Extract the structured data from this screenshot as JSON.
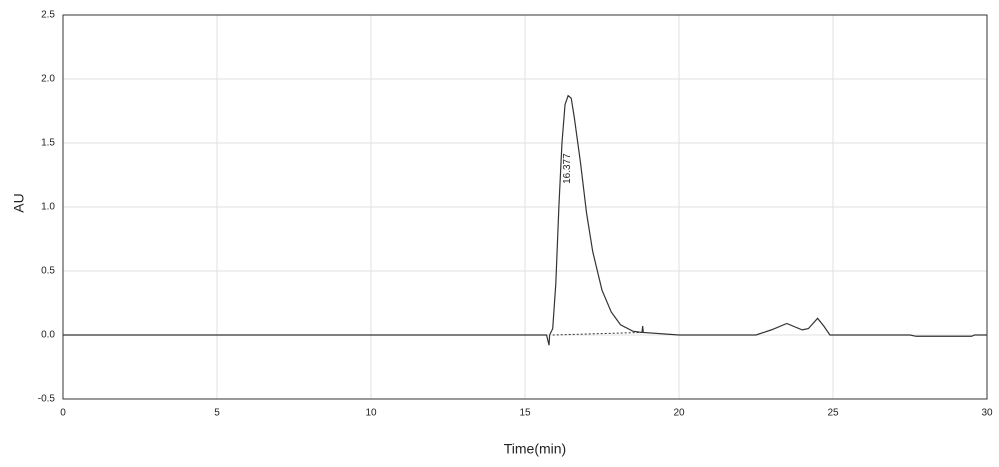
{
  "chart_data": {
    "type": "line",
    "x_label": "Time(min)",
    "y_label": "AU",
    "color": "#333333",
    "x": [
      0,
      15.7,
      15.78,
      15.8,
      15.9,
      16.0,
      16.1,
      16.2,
      16.3,
      16.4,
      16.5,
      16.6,
      16.8,
      17.0,
      17.2,
      17.5,
      17.8,
      18.1,
      18.5,
      18.8,
      18.82,
      18.84,
      20,
      22.5,
      23.0,
      23.5,
      24.0,
      24.2,
      24.5,
      24.7,
      24.9,
      27.5,
      27.7,
      29.5,
      29.6,
      30
    ],
    "values": [
      0,
      0,
      -0.08,
      0,
      0.05,
      0.4,
      1.0,
      1.5,
      1.8,
      1.87,
      1.85,
      1.7,
      1.35,
      0.95,
      0.65,
      0.35,
      0.18,
      0.08,
      0.03,
      0.02,
      0.07,
      0.02,
      0,
      0,
      0.04,
      0.09,
      0.04,
      0.05,
      0.13,
      0.07,
      0,
      0,
      -0.01,
      -0.01,
      0,
      0
    ],
    "baseline": {
      "x": [
        15.9,
        18.8
      ],
      "values": [
        0,
        0.02
      ]
    },
    "annotations": [
      {
        "text": "16.377",
        "x": 16.377,
        "y": 1.3
      }
    ],
    "xlim": [
      0,
      30
    ],
    "xticks": [
      0,
      5,
      10,
      15,
      20,
      25,
      30
    ],
    "ylim": [
      -0.5,
      2.5
    ],
    "yticks": [
      -0.5,
      {
        "value": 0,
        "label": "0.0"
      },
      0.5,
      {
        "value": 1,
        "label": "1.0"
      },
      1.5,
      {
        "value": 2,
        "label": "2.0"
      },
      2.5
    ],
    "grid": true
  }
}
